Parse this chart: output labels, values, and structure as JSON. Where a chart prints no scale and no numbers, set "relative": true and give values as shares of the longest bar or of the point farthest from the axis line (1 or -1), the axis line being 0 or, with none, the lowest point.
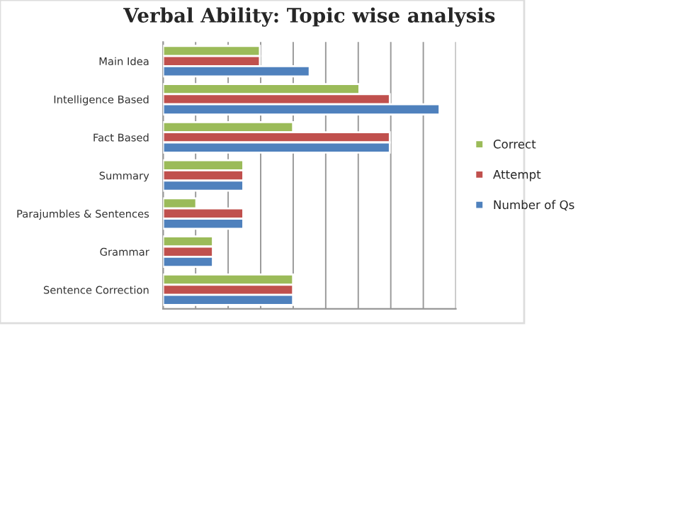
{
  "chart_data": {
    "type": "bar",
    "orientation": "horizontal",
    "relative": true,
    "title": "Verbal Ability: Topic wise analysis",
    "categories": [
      "Main Idea",
      "Intelligence Based",
      "Fact Based",
      "Summary",
      "Parajumbles & Sentences",
      "Grammar",
      "Sentence Correction"
    ],
    "series": [
      {
        "name": "Correct",
        "color": "#9bbb59",
        "values": [
          0.35,
          0.71,
          0.47,
          0.29,
          0.12,
          0.18,
          0.47
        ]
      },
      {
        "name": "Attempt",
        "color": "#c0504d",
        "values": [
          0.35,
          0.82,
          0.82,
          0.29,
          0.29,
          0.18,
          0.47
        ]
      },
      {
        "name": "Number of Qs",
        "color": "#4f81bd",
        "values": [
          0.53,
          1,
          0.82,
          0.29,
          0.29,
          0.18,
          0.47
        ]
      }
    ],
    "grid": "x",
    "legend": "right"
  }
}
